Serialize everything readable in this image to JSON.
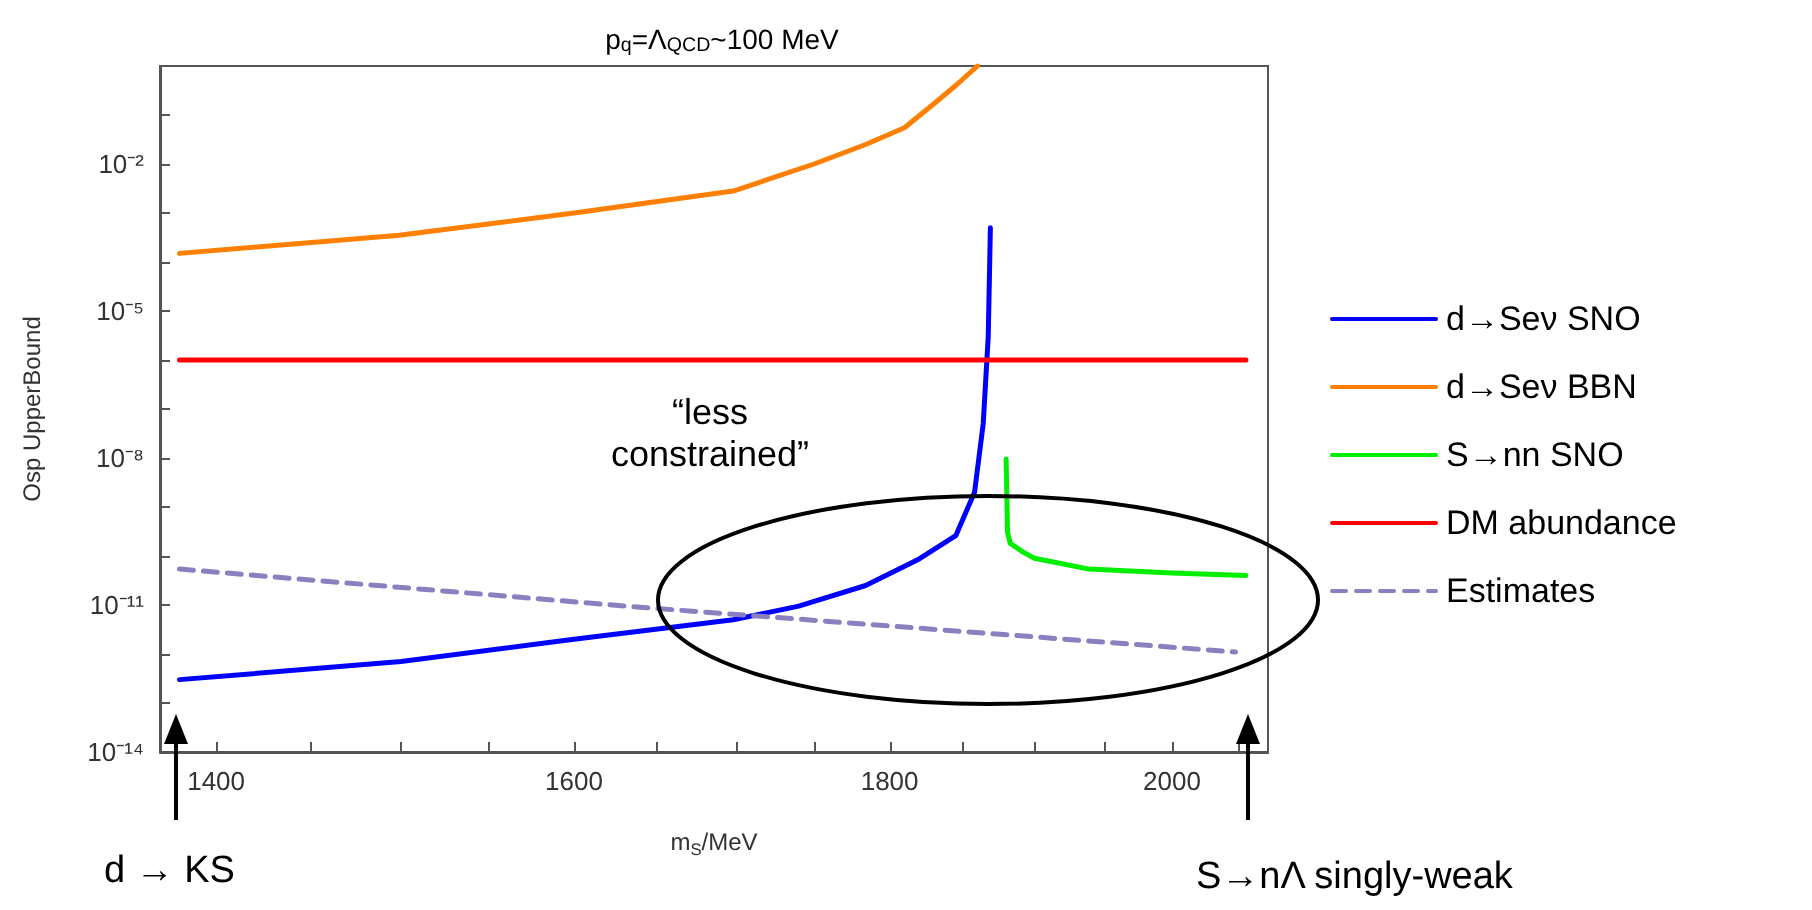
{
  "chart_data": {
    "type": "line",
    "title": "p$_{q}$=Λ$_{QCD}$~100 MeV",
    "xlabel": "m$_{S}$/MeV",
    "ylabel": "Osp UpperBound",
    "log": "xy",
    "grid": false,
    "legend": "right",
    "marker": "none",
    "xlim": [
      1371,
      2073
    ],
    "xticks": [
      1400,
      {
        "value": 1450,
        "label": null
      },
      {
        "value": 1500,
        "label": null
      },
      {
        "value": 1550,
        "label": null
      },
      1600,
      {
        "value": 1650,
        "label": null
      },
      {
        "value": 1700,
        "label": null
      },
      {
        "value": 1750,
        "label": null
      },
      1800,
      {
        "value": 1850,
        "label": null
      },
      {
        "value": 1900,
        "label": null
      },
      {
        "value": 1950,
        "label": null
      },
      2000,
      {
        "value": 2050,
        "label": null
      }
    ],
    "ylim": [
      1e-14,
      1
    ],
    "yticks": [
      {
        "value": 1e-14,
        "label": "10⁻¹⁴"
      },
      {
        "value": 1e-13,
        "label": null
      },
      {
        "value": 1e-12,
        "label": null
      },
      {
        "value": 1e-11,
        "label": "10⁻¹¹"
      },
      {
        "value": 1e-10,
        "label": null
      },
      {
        "value": 1e-09,
        "label": null
      },
      {
        "value": 1e-08,
        "label": "10⁻⁸"
      },
      {
        "value": 1e-07,
        "label": null
      },
      {
        "value": 1e-06,
        "label": null
      },
      {
        "value": 1e-05,
        "label": "10⁻⁵"
      },
      {
        "value": 0.0001,
        "label": null
      },
      {
        "value": 0.001,
        "label": null
      },
      {
        "value": 0.01,
        "label": "10⁻²"
      },
      {
        "value": 0.1,
        "label": null
      }
    ],
    "series": [
      {
        "name": "d→Seν SNO",
        "color": "#0000ff",
        "x": [
          1381,
          1500,
          1600,
          1698,
          1740,
          1784,
          1820,
          1845,
          1858,
          1864,
          1867.5,
          1869
        ],
        "values": [
          3e-13,
          7e-13,
          2e-12,
          5e-12,
          9.5e-12,
          2.5e-11,
          8.7e-11,
          2.6e-10,
          2e-09,
          5e-08,
          3e-06,
          0.0005
        ]
      },
      {
        "name": "d→Seν BBN",
        "color": "#ff8000",
        "x": [
          1381,
          1499,
          1600,
          1698,
          1750,
          1784,
          1810,
          1829,
          1845,
          1860
        ],
        "values": [
          0.00015,
          0.00035,
          0.001,
          0.0028,
          0.01,
          0.025,
          0.055,
          0.16,
          0.4,
          1
        ]
      },
      {
        "name": "S→nn SNO",
        "color": "#00ee00",
        "x": [
          1880,
          1881,
          1883,
          1892,
          1900,
          1939,
          2000,
          2056
        ],
        "values": [
          9.5e-09,
          3e-10,
          1.8e-10,
          1.2e-10,
          9e-11,
          5.4e-11,
          4.5e-11,
          4e-11
        ]
      },
      {
        "name": "DM abundance",
        "color": "#ff0000",
        "x": [
          1381,
          2056
        ],
        "values": [
          1e-06,
          1e-06
        ]
      },
      {
        "name": "Estimates",
        "color": "#8a80c0",
        "line_style": "dashed",
        "x": [
          1381,
          1640,
          2048
        ],
        "values": [
          5.4e-11,
          9e-12,
          1.1e-12
        ]
      }
    ],
    "annotations": [
      "“less constrained”",
      "d → KS",
      "S→nΛ   singly-weak"
    ]
  }
}
